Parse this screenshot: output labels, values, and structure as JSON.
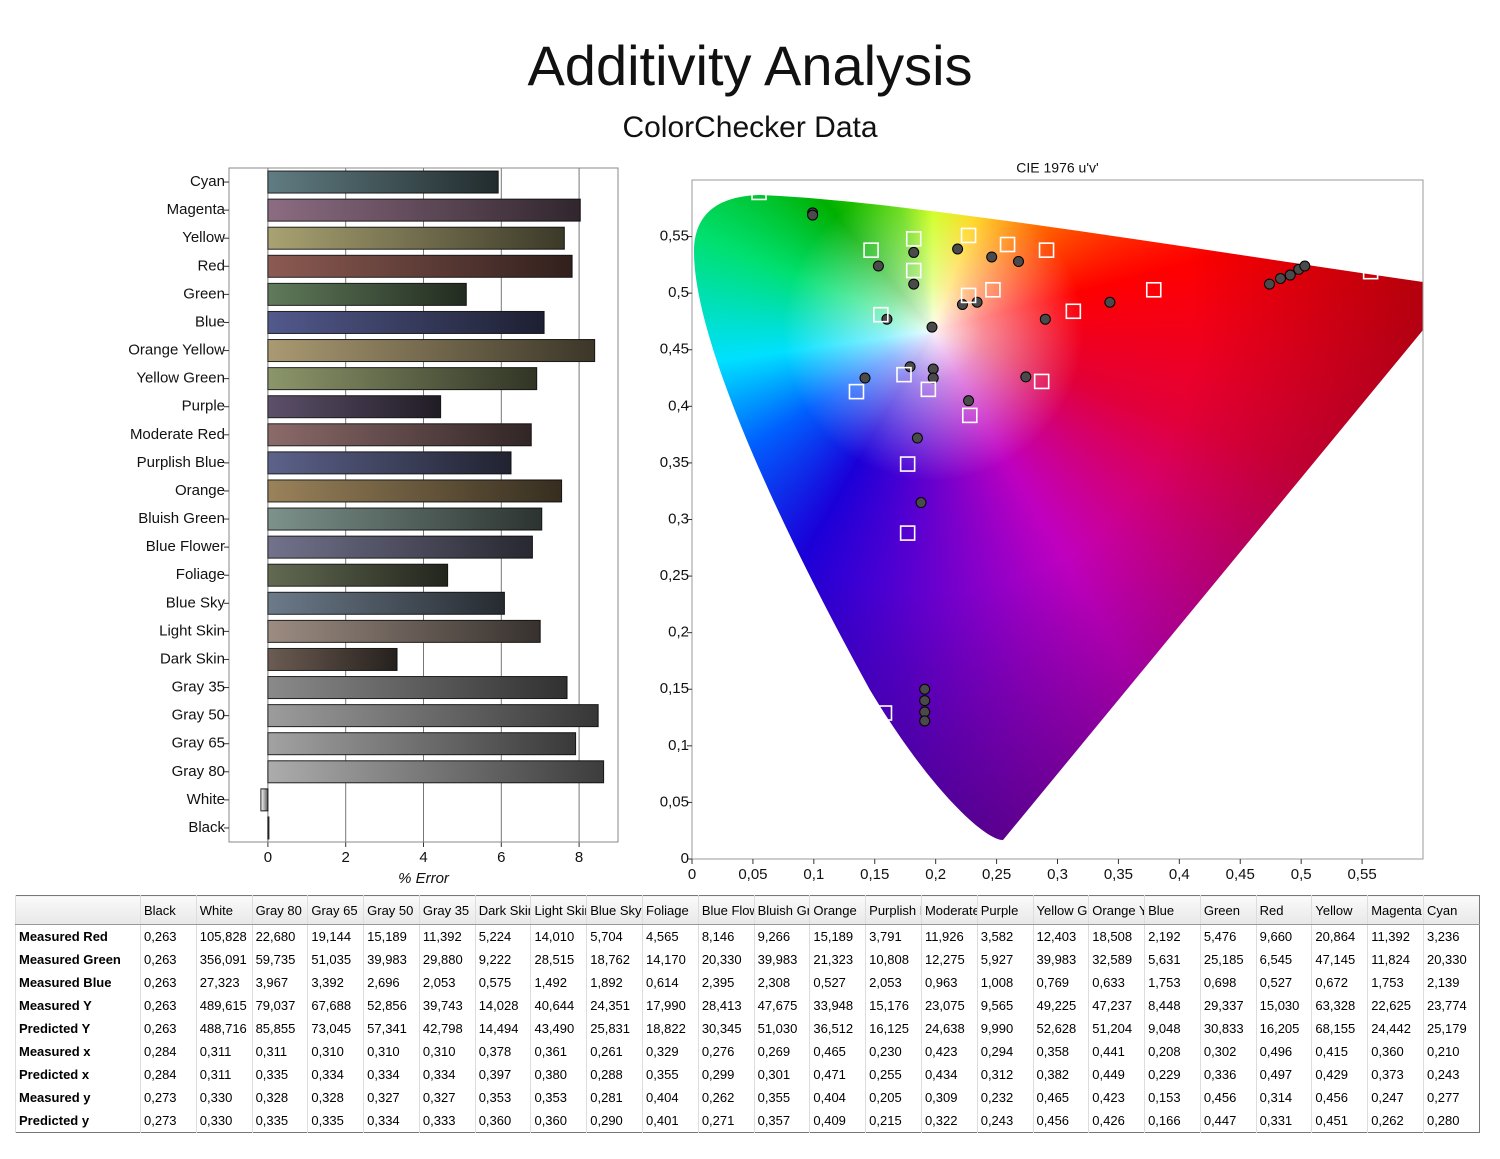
{
  "header": {
    "title": "Additivity Analysis",
    "subtitle": "ColorChecker Data"
  },
  "chart_data": [
    {
      "type": "bar",
      "orientation": "horizontal",
      "categories": [
        "Cyan",
        "Magenta",
        "Yellow",
        "Red",
        "Green",
        "Blue",
        "Orange Yellow",
        "Yellow Green",
        "Purple",
        "Moderate Red",
        "Purplish Blue",
        "Orange",
        "Bluish Green",
        "Blue Flower",
        "Foliage",
        "Blue Sky",
        "Light Skin",
        "Dark Skin",
        "Gray 35",
        "Gray 50",
        "Gray 65",
        "Gray 80",
        "White",
        "Black"
      ],
      "values": [
        5.92,
        8.03,
        7.62,
        7.82,
        5.1,
        7.1,
        8.4,
        6.91,
        4.44,
        6.77,
        6.25,
        7.55,
        7.04,
        6.8,
        4.62,
        6.08,
        7.0,
        3.32,
        7.69,
        8.49,
        7.91,
        8.63,
        -0.18,
        0
      ],
      "colors": [
        "#607c82",
        "#8c6c82",
        "#a9a272",
        "#8c5a52",
        "#607a5a",
        "#52598c",
        "#aa9a72",
        "#8c966a",
        "#5c506a",
        "#8c6a6a",
        "#5c628a",
        "#9a825a",
        "#7c928a",
        "#72728c",
        "#626a52",
        "#6c7a8a",
        "#9c8c82",
        "#6c5c52",
        "#8a8a8a",
        "#9c9c9c",
        "#a2a2a2",
        "#acacac",
        "#ffffff",
        "#000000"
      ],
      "xlabel": "% Error",
      "xlim": [
        -1,
        9
      ],
      "xticks": [
        0,
        2,
        4,
        6,
        8
      ],
      "grid": true
    },
    {
      "type": "scatter",
      "title": "CIE 1976 u'v'",
      "xlim": [
        0,
        0.6
      ],
      "ylim": [
        0,
        0.6
      ],
      "xticks": [
        0,
        {
          "value": 0.05,
          "label": "0,05"
        },
        {
          "value": 0.1,
          "label": "0,1"
        },
        {
          "value": 0.15,
          "label": "0,15"
        },
        {
          "value": 0.2,
          "label": "0,2"
        },
        {
          "value": 0.25,
          "label": "0,25"
        },
        {
          "value": 0.3,
          "label": "0,3"
        },
        {
          "value": 0.35,
          "label": "0,35"
        },
        {
          "value": 0.4,
          "label": "0,4"
        },
        {
          "value": 0.45,
          "label": "0,45"
        },
        {
          "value": 0.5,
          "label": "0,5"
        },
        {
          "value": 0.55,
          "label": "0,55"
        }
      ],
      "yticks": [
        0,
        {
          "value": 0.05,
          "label": "0,05"
        },
        {
          "value": 0.1,
          "label": "0,1"
        },
        {
          "value": 0.15,
          "label": "0,15"
        },
        {
          "value": 0.2,
          "label": "0,2"
        },
        {
          "value": 0.25,
          "label": "0,25"
        },
        {
          "value": 0.3,
          "label": "0,3"
        },
        {
          "value": 0.35,
          "label": "0,35"
        },
        {
          "value": 0.4,
          "label": "0,4"
        },
        {
          "value": 0.45,
          "label": "0,45"
        },
        {
          "value": 0.5,
          "label": "0,5"
        },
        {
          "value": 0.55,
          "label": "0,55"
        }
      ],
      "series": [
        {
          "marker": "circle",
          "color": "#4a4a4a",
          "x": [
            0.099,
            0.099,
            0.153,
            0.182,
            0.182,
            0.16,
            0.197,
            0.218,
            0.246,
            0.268,
            0.222,
            0.234,
            0.343,
            0.29,
            0.142,
            0.179,
            0.198,
            0.198,
            0.274,
            0.227,
            0.185,
            0.188,
            0.474,
            0.483,
            0.491,
            0.498,
            0.503,
            0.191,
            0.191,
            0.191,
            0.191
          ],
          "values": [
            0.571,
            0.569,
            0.524,
            0.536,
            0.508,
            0.477,
            0.47,
            0.539,
            0.532,
            0.528,
            0.49,
            0.492,
            0.492,
            0.477,
            0.425,
            0.435,
            0.433,
            0.425,
            0.426,
            0.405,
            0.372,
            0.315,
            0.508,
            0.513,
            0.516,
            0.521,
            0.524,
            0.15,
            0.14,
            0.13,
            0.122
          ]
        },
        {
          "marker": "square",
          "color": "#ffffff",
          "x": [
            0.055,
            0.147,
            0.182,
            0.227,
            0.259,
            0.291,
            0.182,
            0.227,
            0.247,
            0.379,
            0.313,
            0.557,
            0.155,
            0.135,
            0.174,
            0.194,
            0.228,
            0.287,
            0.177,
            0.177,
            0.158
          ],
          "values": [
            0.589,
            0.538,
            0.548,
            0.551,
            0.543,
            0.538,
            0.52,
            0.498,
            0.503,
            0.503,
            0.484,
            0.519,
            0.481,
            0.413,
            0.428,
            0.415,
            0.392,
            0.422,
            0.349,
            0.288,
            0.129
          ]
        }
      ]
    }
  ],
  "table": {
    "columns": [
      "Black",
      "White",
      "Gray 80",
      "Gray 65",
      "Gray 50",
      "Gray 35",
      "Dark Skin",
      "Light Skin",
      "Blue Sky",
      "Foliage",
      "Blue Flowe",
      "Bluish Gre",
      "Orange",
      "Purplish Bl",
      "Moderate",
      "Purple",
      "Yellow Gre",
      "Orange Yel",
      "Blue",
      "Green",
      "Red",
      "Yellow",
      "Magenta",
      "Cyan"
    ],
    "rows": [
      {
        "label": "Measured Red",
        "values": [
          "0,263",
          "105,828",
          "22,680",
          "19,144",
          "15,189",
          "11,392",
          "5,224",
          "14,010",
          "5,704",
          "4,565",
          "8,146",
          "9,266",
          "15,189",
          "3,791",
          "11,926",
          "3,582",
          "12,403",
          "18,508",
          "2,192",
          "5,476",
          "9,660",
          "20,864",
          "11,392",
          "3,236"
        ]
      },
      {
        "label": "Measured Green",
        "values": [
          "0,263",
          "356,091",
          "59,735",
          "51,035",
          "39,983",
          "29,880",
          "9,222",
          "28,515",
          "18,762",
          "14,170",
          "20,330",
          "39,983",
          "21,323",
          "10,808",
          "12,275",
          "5,927",
          "39,983",
          "32,589",
          "5,631",
          "25,185",
          "6,545",
          "47,145",
          "11,824",
          "20,330"
        ]
      },
      {
        "label": "Measured Blue",
        "values": [
          "0,263",
          "27,323",
          "3,967",
          "3,392",
          "2,696",
          "2,053",
          "0,575",
          "1,492",
          "1,892",
          "0,614",
          "2,395",
          "2,308",
          "0,527",
          "2,053",
          "0,963",
          "1,008",
          "0,769",
          "0,633",
          "1,753",
          "0,698",
          "0,527",
          "0,672",
          "1,753",
          "2,139"
        ]
      },
      {
        "label": "Measured Y",
        "values": [
          "0,263",
          "489,615",
          "79,037",
          "67,688",
          "52,856",
          "39,743",
          "14,028",
          "40,644",
          "24,351",
          "17,990",
          "28,413",
          "47,675",
          "33,948",
          "15,176",
          "23,075",
          "9,565",
          "49,225",
          "47,237",
          "8,448",
          "29,337",
          "15,030",
          "63,328",
          "22,625",
          "23,774"
        ]
      },
      {
        "label": "Predicted Y",
        "values": [
          "0,263",
          "488,716",
          "85,855",
          "73,045",
          "57,341",
          "42,798",
          "14,494",
          "43,490",
          "25,831",
          "18,822",
          "30,345",
          "51,030",
          "36,512",
          "16,125",
          "24,638",
          "9,990",
          "52,628",
          "51,204",
          "9,048",
          "30,833",
          "16,205",
          "68,155",
          "24,442",
          "25,179"
        ]
      },
      {
        "label": "Measured x",
        "values": [
          "0,284",
          "0,311",
          "0,311",
          "0,310",
          "0,310",
          "0,310",
          "0,378",
          "0,361",
          "0,261",
          "0,329",
          "0,276",
          "0,269",
          "0,465",
          "0,230",
          "0,423",
          "0,294",
          "0,358",
          "0,441",
          "0,208",
          "0,302",
          "0,496",
          "0,415",
          "0,360",
          "0,210"
        ]
      },
      {
        "label": "Predicted x",
        "values": [
          "0,284",
          "0,311",
          "0,335",
          "0,334",
          "0,334",
          "0,334",
          "0,397",
          "0,380",
          "0,288",
          "0,355",
          "0,299",
          "0,301",
          "0,471",
          "0,255",
          "0,434",
          "0,312",
          "0,382",
          "0,449",
          "0,229",
          "0,336",
          "0,497",
          "0,429",
          "0,373",
          "0,243"
        ]
      },
      {
        "label": "Measured y",
        "values": [
          "0,273",
          "0,330",
          "0,328",
          "0,328",
          "0,327",
          "0,327",
          "0,353",
          "0,353",
          "0,281",
          "0,404",
          "0,262",
          "0,355",
          "0,404",
          "0,205",
          "0,309",
          "0,232",
          "0,465",
          "0,423",
          "0,153",
          "0,456",
          "0,314",
          "0,456",
          "0,247",
          "0,277"
        ]
      },
      {
        "label": "Predicted y",
        "values": [
          "0,273",
          "0,330",
          "0,335",
          "0,335",
          "0,334",
          "0,333",
          "0,360",
          "0,360",
          "0,290",
          "0,401",
          "0,271",
          "0,357",
          "0,409",
          "0,215",
          "0,322",
          "0,243",
          "0,456",
          "0,426",
          "0,166",
          "0,447",
          "0,331",
          "0,451",
          "0,262",
          "0,280"
        ]
      }
    ]
  }
}
